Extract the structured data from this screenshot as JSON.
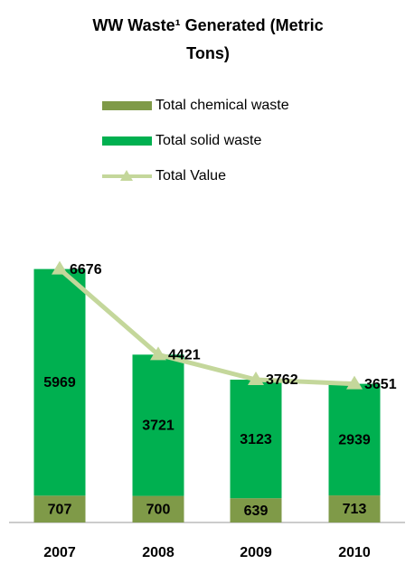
{
  "chart_data": {
    "type": "bar",
    "stacked": true,
    "title": "WW Waste¹ Generated (Metric Tons)",
    "categories": [
      "2007",
      "2008",
      "2009",
      "2010"
    ],
    "series": [
      {
        "name": "Total chemical waste",
        "color": "#7f9a48",
        "values": [
          707,
          700,
          639,
          713
        ]
      },
      {
        "name": "Total solid waste",
        "color": "#00b050",
        "values": [
          5969,
          3721,
          3123,
          2939
        ]
      },
      {
        "name": "Total Value",
        "type": "line",
        "color": "#c4d79b",
        "values": [
          6676,
          4421,
          3762,
          3651
        ]
      }
    ],
    "legend": "top"
  }
}
